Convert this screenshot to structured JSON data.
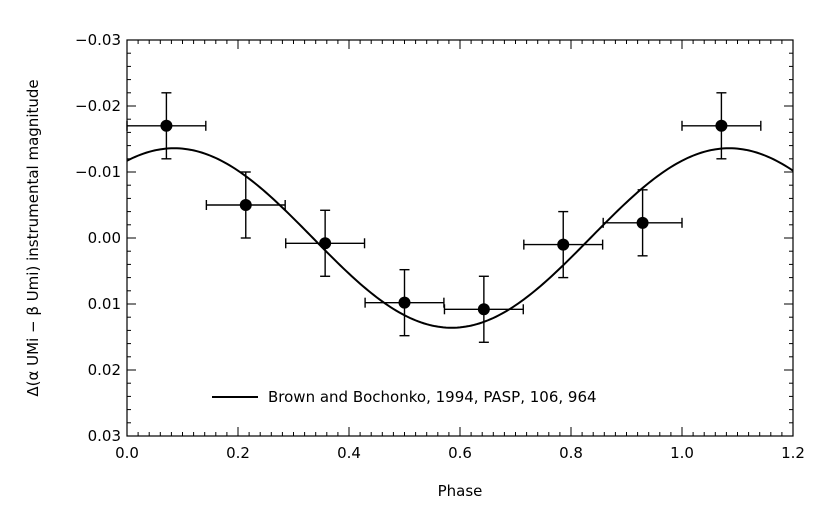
{
  "chart_data": {
    "type": "scatter",
    "title": "",
    "xlabel": "Phase",
    "ylabel_parts": [
      "Δ(",
      "α",
      " UMi − ",
      "β",
      " Umi) instrumental magnitude"
    ],
    "xlim": [
      0.0,
      1.2
    ],
    "ylim": [
      0.03,
      -0.03
    ],
    "y_inverted": true,
    "grid": false,
    "x_ticks": [
      0.0,
      0.2,
      0.4,
      0.6,
      0.8,
      1.0,
      1.2
    ],
    "x_tick_labels": [
      "0.0",
      "0.2",
      "0.4",
      "0.6",
      "0.8",
      "1.0",
      "1.2"
    ],
    "y_ticks": [
      -0.03,
      -0.02,
      -0.01,
      0.0,
      0.01,
      0.02,
      0.03
    ],
    "y_tick_labels": [
      "−0.03",
      "−0.02",
      "−0.01",
      "0.00",
      "0.01",
      "0.02",
      "0.03"
    ],
    "points": [
      {
        "x": 0.071,
        "y": -0.017,
        "xerr": 0.071,
        "yerr": 0.005
      },
      {
        "x": 0.214,
        "y": -0.005,
        "xerr": 0.071,
        "yerr": 0.005
      },
      {
        "x": 0.357,
        "y": 0.0008,
        "xerr": 0.071,
        "yerr": 0.005
      },
      {
        "x": 0.5,
        "y": 0.0098,
        "xerr": 0.071,
        "yerr": 0.005
      },
      {
        "x": 0.643,
        "y": 0.0108,
        "xerr": 0.071,
        "yerr": 0.005
      },
      {
        "x": 0.786,
        "y": 0.001,
        "xerr": 0.071,
        "yerr": 0.005
      },
      {
        "x": 0.929,
        "y": -0.0023,
        "xerr": 0.071,
        "yerr": 0.005
      },
      {
        "x": 1.071,
        "y": -0.017,
        "xerr": 0.071,
        "yerr": 0.005
      }
    ],
    "model_curve": {
      "name": "Brown and Bochonko, 1994, PASP, 106, 964",
      "amplitude": 0.0136,
      "period": 1.0,
      "phase_of_max": 0.085
    },
    "legend": {
      "position": "bottom-center",
      "entries": [
        "Brown and Bochonko, 1994, PASP, 106, 964"
      ]
    }
  }
}
